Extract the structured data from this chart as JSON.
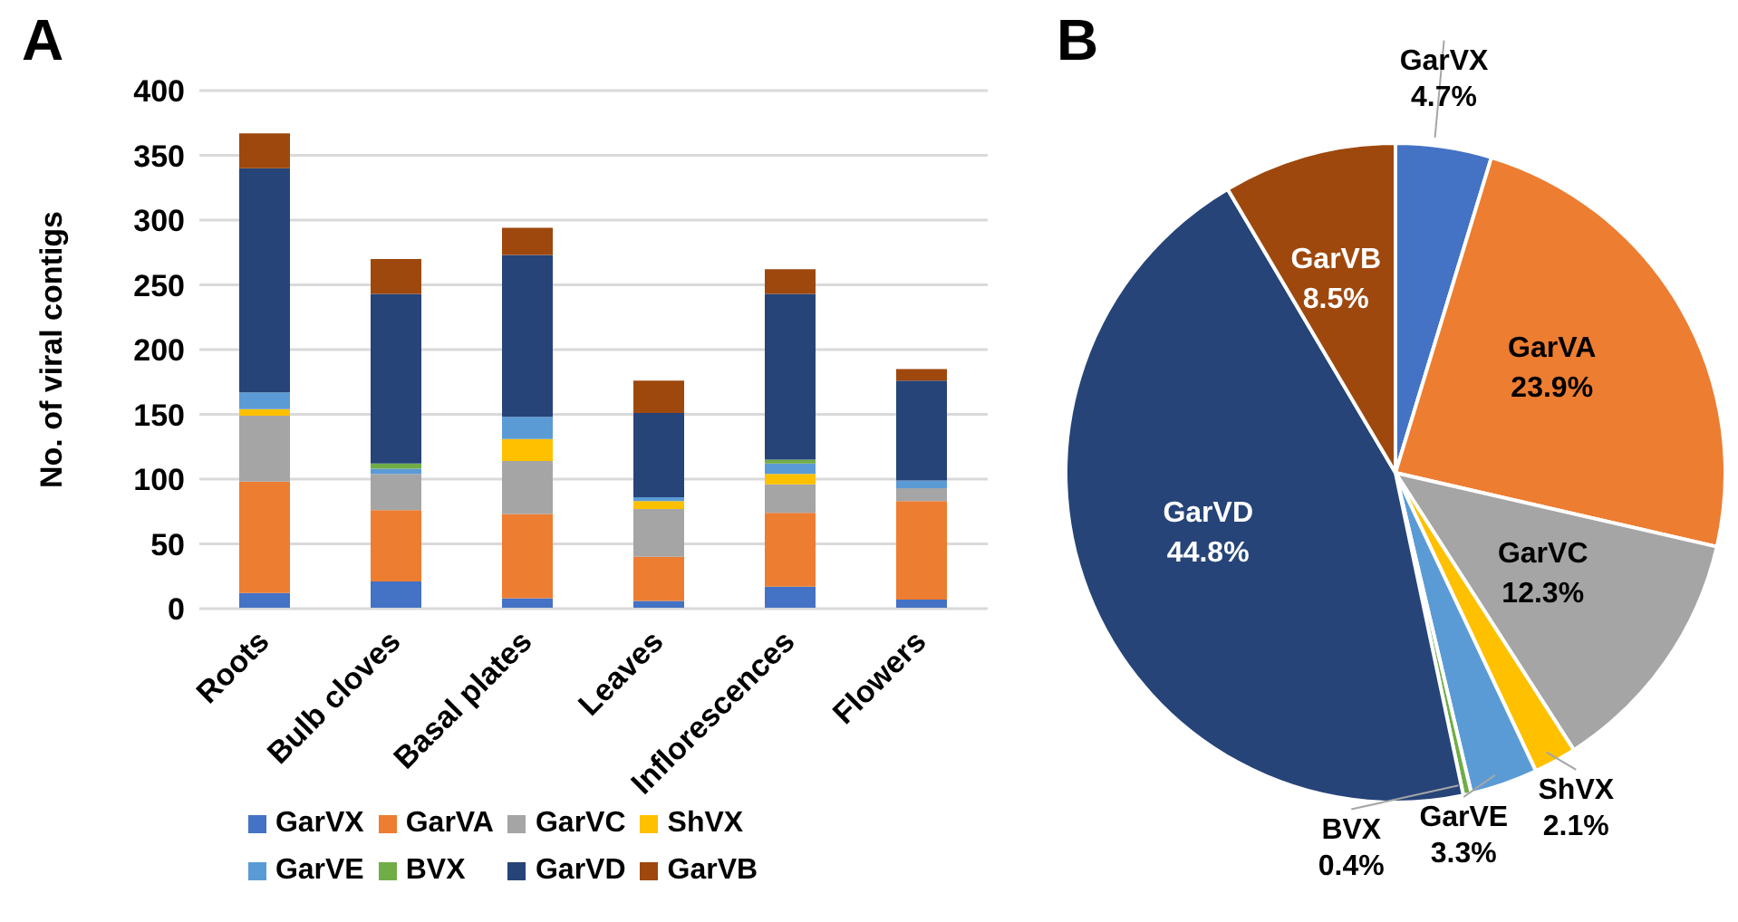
{
  "chart_data": [
    {
      "type": "bar",
      "title": "A",
      "ylabel": "No. of viral contigs",
      "categories": [
        "Roots",
        "Bulb cloves",
        "Basal plates",
        "Leaves",
        "Inflorescences",
        "Flowers"
      ],
      "stacked": true,
      "ylim": [
        0,
        400
      ],
      "yticks": [
        0,
        50,
        100,
        150,
        200,
        250,
        300,
        350,
        400
      ],
      "grid": "y",
      "legend": "bottom",
      "series": [
        {
          "name": "GarVX",
          "color": "#4472c4",
          "values": [
            12,
            21,
            8,
            6,
            17,
            7
          ]
        },
        {
          "name": "GarVA",
          "color": "#ed7d31",
          "values": [
            86,
            55,
            65,
            34,
            57,
            76
          ]
        },
        {
          "name": "GarVC",
          "color": "#a5a5a5",
          "values": [
            51,
            28,
            41,
            37,
            22,
            10
          ]
        },
        {
          "name": "ShVX",
          "color": "#ffc000",
          "values": [
            5,
            0,
            17,
            6,
            8,
            0
          ]
        },
        {
          "name": "GarVE",
          "color": "#5b9bd5",
          "values": [
            13,
            4,
            17,
            3,
            8,
            6
          ]
        },
        {
          "name": "BVX",
          "color": "#70ad47",
          "values": [
            0,
            4,
            0,
            0,
            3,
            0
          ]
        },
        {
          "name": "GarVD",
          "color": "#264478",
          "values": [
            173,
            131,
            125,
            65,
            128,
            77
          ]
        },
        {
          "name": "GarVB",
          "color": "#9e480e",
          "values": [
            27,
            27,
            21,
            25,
            19,
            9
          ]
        }
      ]
    },
    {
      "type": "pie",
      "title": "B",
      "categories": [
        "GarVX",
        "GarVA",
        "GarVC",
        "ShVX",
        "GarVE",
        "BVX",
        "GarVD",
        "GarVB"
      ],
      "values": [
        4.7,
        23.9,
        12.3,
        2.1,
        3.3,
        0.4,
        44.8,
        8.5
      ],
      "colors": [
        "#4472c4",
        "#ed7d31",
        "#a5a5a5",
        "#ffc000",
        "#5b9bd5",
        "#70ad47",
        "#264478",
        "#9e480e"
      ],
      "value_labels": [
        "4.7%",
        "23.9%",
        "12.3%",
        "2.1%",
        "3.3%",
        "0.4%",
        "44.8%",
        "8.5%"
      ]
    }
  ]
}
